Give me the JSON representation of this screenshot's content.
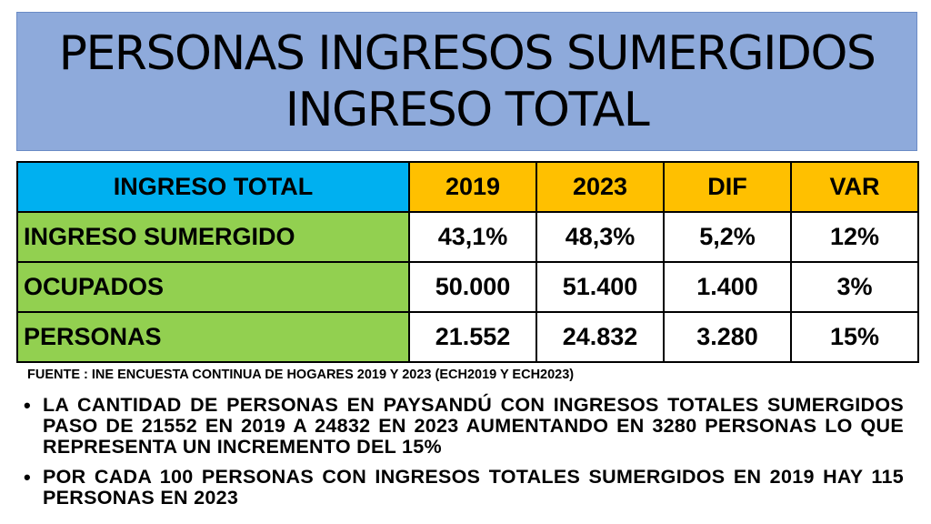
{
  "title": {
    "line1": "PERSONAS INGRESOS SUMERGIDOS",
    "line2": "INGRESO TOTAL"
  },
  "table": {
    "headers": [
      "INGRESO TOTAL",
      "2019",
      "2023",
      "DIF",
      "VAR"
    ],
    "rows": [
      {
        "label": "INGRESO SUMERGIDO",
        "values": [
          "43,1%",
          "48,3%",
          "5,2%",
          "12%"
        ]
      },
      {
        "label": "OCUPADOS",
        "values": [
          "50.000",
          "51.400",
          "1.400",
          "3%"
        ]
      },
      {
        "label": "PERSONAS",
        "values": [
          "21.552",
          "24.832",
          "3.280",
          "15%"
        ]
      }
    ]
  },
  "source": "FUENTE : INE ENCUESTA CONTINUA DE HOGARES 2019 Y 2023 (ECH2019 Y ECH2023)",
  "bullets": [
    "LA CANTIDAD DE PERSONAS EN PAYSANDÚ CON INGRESOS TOTALES SUMERGIDOS PASO DE 21552 EN 2019 A 24832 EN 2023 AUMENTANDO EN 3280 PERSONAS LO QUE REPRESENTA UN INCREMENTO DEL 15%",
    "POR CADA 100 PERSONAS CON INGRESOS TOTALES SUMERGIDOS EN 2019 HAY 115 PERSONAS EN 2023"
  ],
  "bullet_glyph": "•",
  "colors": {
    "title_bg": "#8eaadb",
    "header_label_bg": "#00b0f0",
    "header_year_bg": "#ffc000",
    "row_label_bg": "#92d050"
  }
}
